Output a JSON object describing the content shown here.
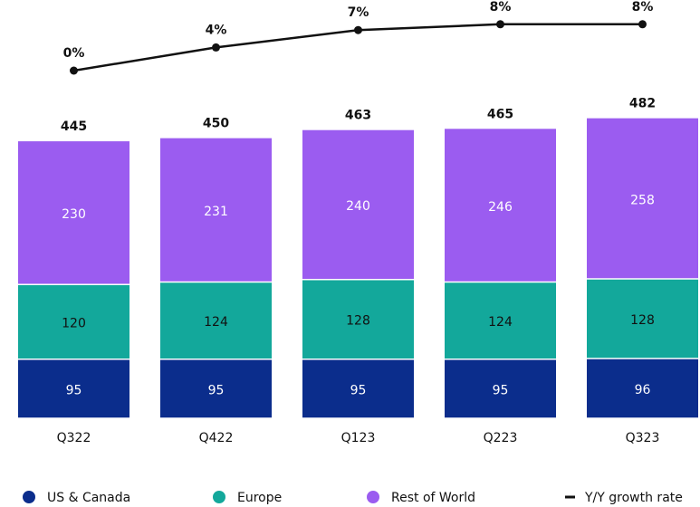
{
  "chart_data": {
    "type": "bar",
    "stacked": true,
    "categories": [
      "Q322",
      "Q422",
      "Q123",
      "Q223",
      "Q323"
    ],
    "series": [
      {
        "name": "US & Canada",
        "color": "#0b2d8c",
        "label_color": "#ffffff",
        "values": [
          95,
          95,
          95,
          95,
          96
        ]
      },
      {
        "name": "Europe",
        "color": "#13a89b",
        "label_color": "#111111",
        "values": [
          120,
          124,
          128,
          124,
          128
        ]
      },
      {
        "name": "Rest of World",
        "color": "#9b5cf0",
        "label_color": "#ffffff",
        "values": [
          230,
          231,
          240,
          246,
          258
        ]
      }
    ],
    "totals": [
      445,
      450,
      463,
      465,
      482
    ],
    "line": {
      "type": "line",
      "name": "Y/Y growth rate",
      "color": "#111111",
      "axis": "y2",
      "values": [
        0,
        4,
        7,
        8,
        8
      ],
      "value_labels": [
        "0%",
        "4%",
        "7%",
        "8%",
        "8%"
      ]
    },
    "ylim": [
      0,
      672
    ],
    "y2lim": [
      0,
      10
    ],
    "legend": "bottom"
  }
}
